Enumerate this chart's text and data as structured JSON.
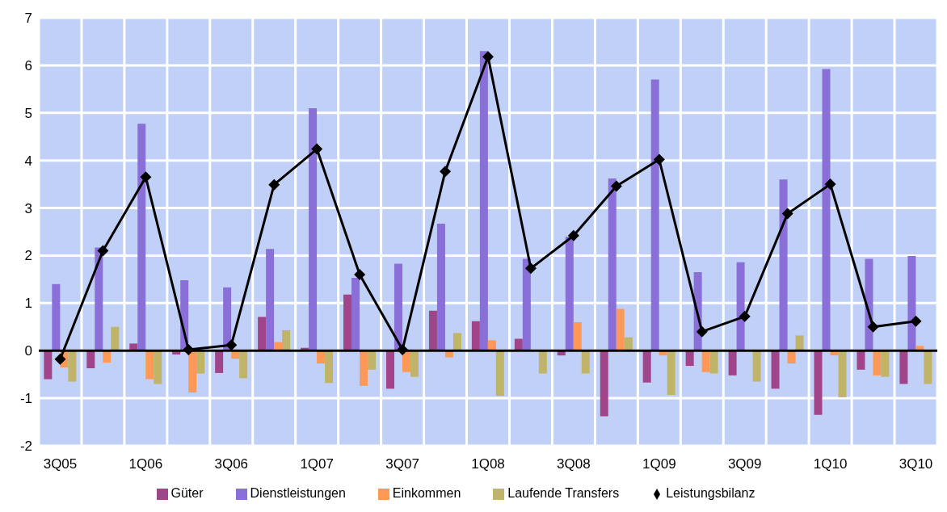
{
  "chart_data": {
    "type": "bar",
    "categories": [
      "3Q05",
      null,
      "1Q06",
      null,
      "3Q06",
      null,
      "1Q07",
      null,
      "3Q07",
      null,
      "1Q08",
      null,
      "3Q08",
      null,
      "1Q09",
      null,
      "3Q09",
      null,
      "1Q10",
      null,
      "3Q10"
    ],
    "series": [
      {
        "name": "Güter",
        "color": "#a0458a",
        "values": [
          -0.6,
          -0.37,
          0.15,
          -0.08,
          -0.47,
          0.71,
          0.06,
          1.18,
          -0.8,
          0.84,
          0.62,
          0.25,
          -0.1,
          -1.38,
          -0.67,
          -0.32,
          -0.52,
          -0.8,
          -1.35,
          -0.4,
          -0.7
        ]
      },
      {
        "name": "Dienstleistungen",
        "color": "#8a6fd8",
        "values": [
          1.4,
          2.17,
          4.77,
          1.48,
          1.33,
          2.14,
          5.1,
          1.53,
          1.83,
          2.67,
          6.3,
          1.93,
          2.4,
          3.62,
          5.7,
          1.65,
          1.86,
          3.6,
          5.92,
          1.93,
          1.99
        ]
      },
      {
        "name": "Einkommen",
        "color": "#ff9955",
        "values": [
          -0.35,
          -0.25,
          -0.6,
          -0.88,
          -0.17,
          0.18,
          -0.27,
          -0.74,
          -0.45,
          -0.14,
          0.22,
          0.0,
          0.6,
          0.88,
          -0.1,
          -0.45,
          0.0,
          -0.27,
          -0.1,
          -0.52,
          0.1
        ]
      },
      {
        "name": "Laufende Transfers",
        "color": "#c0b468",
        "values": [
          -0.65,
          0.5,
          -0.7,
          -0.48,
          -0.58,
          0.43,
          -0.68,
          -0.4,
          -0.55,
          0.37,
          -0.95,
          -0.48,
          -0.48,
          0.28,
          -0.93,
          -0.48,
          -0.65,
          0.32,
          -0.98,
          -0.55,
          -0.7
        ]
      },
      {
        "name": "Leistungsbilanz",
        "type": "line",
        "color": "#000000",
        "values": [
          -0.18,
          2.1,
          3.65,
          0.02,
          0.12,
          3.49,
          4.24,
          1.6,
          0.02,
          3.77,
          6.18,
          1.73,
          2.42,
          3.46,
          4.02,
          0.4,
          0.72,
          2.88,
          3.5,
          0.5,
          0.62
        ]
      }
    ],
    "ylim": [
      -2,
      7
    ],
    "yticks": [
      -2,
      -1,
      0,
      1,
      2,
      3,
      4,
      5,
      6,
      7
    ],
    "grid": true,
    "legend": "bottom",
    "marker": "diamond",
    "line_style": "solid"
  }
}
